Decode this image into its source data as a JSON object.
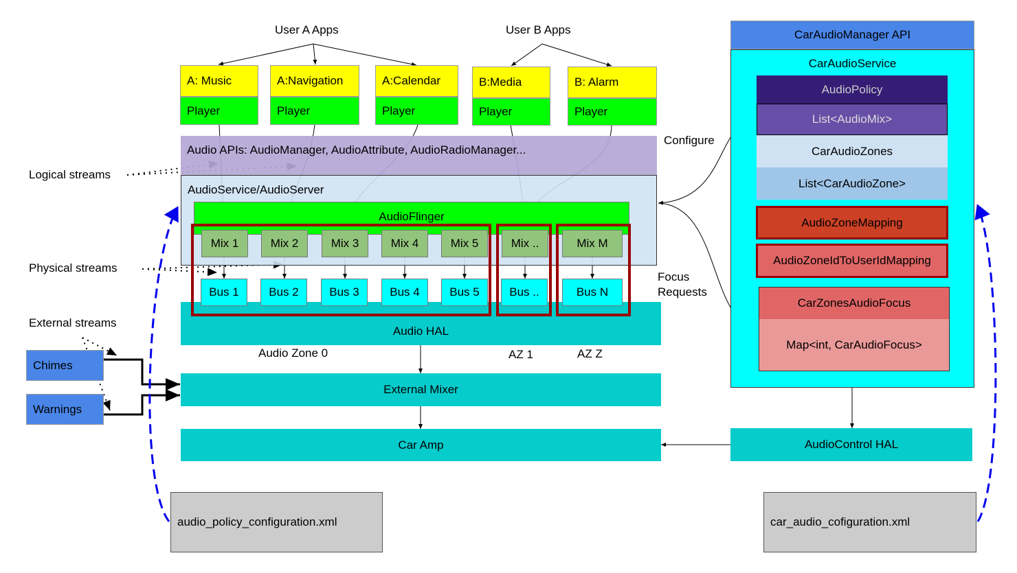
{
  "labels": {
    "user_a_apps": "User A Apps",
    "user_b_apps": "User B Apps",
    "logical_streams": "Logical streams",
    "physical_streams": "Physical streams",
    "external_streams": "External streams",
    "audio_zone_0": "Audio Zone 0",
    "az_1": "AZ 1",
    "az_z": "AZ Z",
    "configure": "Configure",
    "focus_requests_1": "Focus",
    "focus_requests_2": "Requests"
  },
  "apps": [
    {
      "name": "A: Music",
      "player": "Player"
    },
    {
      "name": "A:Navigation",
      "player": "Player"
    },
    {
      "name": "A:Calendar",
      "player": "Player"
    },
    {
      "name": "B:Media",
      "player": "Player"
    },
    {
      "name": "B: Alarm",
      "player": "Player"
    }
  ],
  "audio_apis": "Audio APIs: AudioManager, AudioAttribute, AudioRadioManager...",
  "audio_service": "AudioService/AudioServer",
  "audio_flinger": "AudioFlinger",
  "mixes": [
    "Mix 1",
    "Mix 2",
    "Mix 3",
    "Mix 4",
    "Mix 5",
    "Mix ..",
    "Mix M"
  ],
  "buses": [
    "Bus 1",
    "Bus 2",
    "Bus 3",
    "Bus 4",
    "Bus 5",
    "Bus ..",
    "Bus N"
  ],
  "audio_hal": "Audio HAL",
  "external_mixer": "External Mixer",
  "car_amp": "Car Amp",
  "chimes": "Chimes",
  "warnings": "Warnings",
  "audio_policy_xml": "audio_policy_configuration.xml",
  "car_audio_xml": "car_audio_cofiguration.xml",
  "right": {
    "api": "CarAudioManager API",
    "service": "CarAudioService",
    "audio_policy": "AudioPolicy",
    "list_audio_mix": "List<AudioMix>",
    "car_audio_zones": "CarAudioZones",
    "list_car_audio_zone": "List<CarAudioZone>",
    "audio_zone_mapping": "AudioZoneMapping",
    "zone_id_user_mapping": "AudioZoneIdToUserIdMapping",
    "car_zones_audio_focus": "CarZonesAudioFocus",
    "focus_map": "Map<int, CarAudioFocus>",
    "audio_control_hal": "AudioControl HAL"
  },
  "colors": {
    "yellow": "#ffff00",
    "green": "#00ff00",
    "mix": "#93c47d",
    "bus": "#00ffff",
    "teal": "#06cccc",
    "blue": "#4a86e8",
    "zone_border": "#990000",
    "dashed": "#0000ee"
  }
}
